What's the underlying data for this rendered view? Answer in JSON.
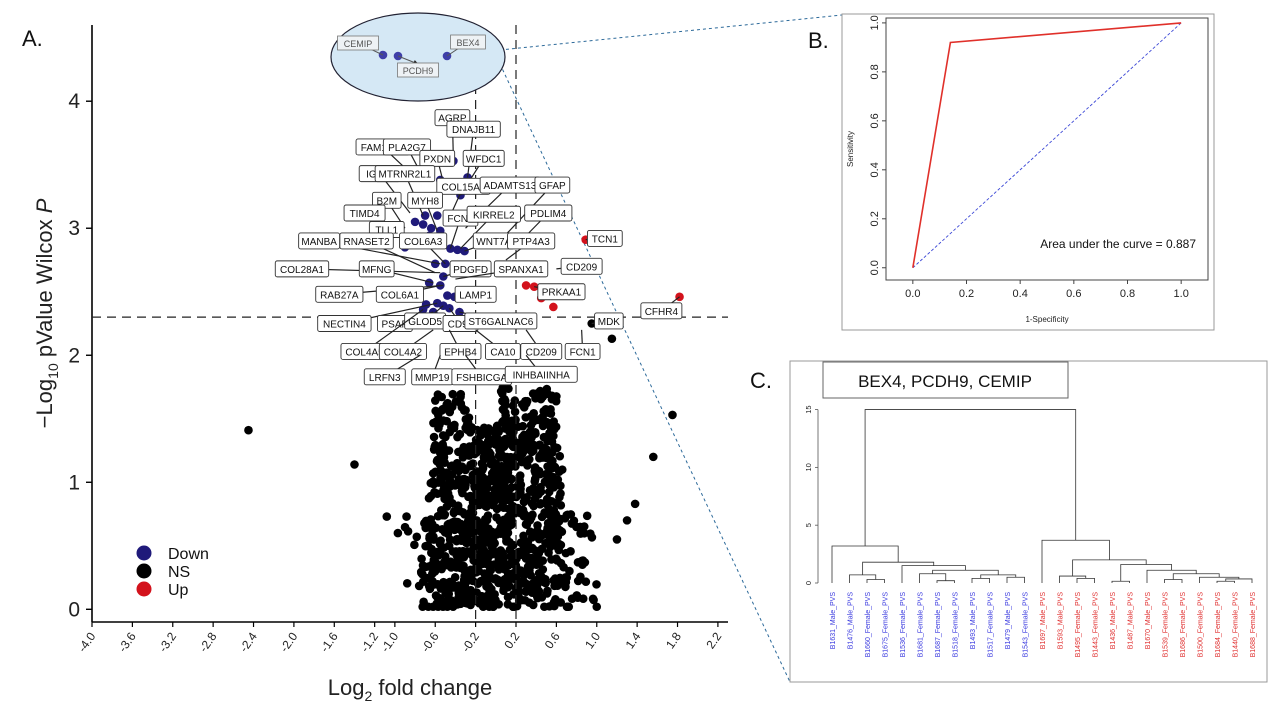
{
  "panels": {
    "a": "A.",
    "b": "B.",
    "c": "C."
  },
  "colors": {
    "down": "#1f1a7a",
    "ns": "#000000",
    "up": "#d3121c",
    "roc": "#e0302a",
    "diag": "#3b47d6",
    "ellipse": "#d5e8f5",
    "male": "#3a3adf",
    "female": "#e03030"
  },
  "chart_data": [
    {
      "type": "scatter",
      "panel": "A",
      "xlabel_parts": [
        "Log",
        "2",
        " fold change"
      ],
      "ylabel_parts": [
        "−Log",
        "10",
        " pValue Wilcox ",
        "P"
      ],
      "xlim": [
        -4.0,
        2.3
      ],
      "ylim": [
        -0.1,
        4.6
      ],
      "x_ticks": [
        "-4.0",
        "-3.6",
        "-3.2",
        "-2.8",
        "-2.4",
        "-2.0",
        "-1.6",
        "-1.2",
        "-1.0",
        "-0.6",
        "-0.2",
        "0.2",
        "0.6",
        "1.0",
        "1.4",
        "1.8",
        "2.2"
      ],
      "y_ticks": [
        "0",
        "1",
        "2",
        "3",
        "4"
      ],
      "thresholds": {
        "fc": [
          -0.2,
          0.2
        ],
        "p": 2.3
      },
      "legend": [
        "Down",
        "NS",
        "Up"
      ],
      "legend_position": "bottom-left",
      "down_points": [
        [
          -0.8,
          3.05
        ],
        [
          -0.72,
          3.03
        ],
        [
          -0.64,
          3.0
        ],
        [
          -0.55,
          2.98
        ],
        [
          -0.9,
          2.85
        ],
        [
          -0.45,
          2.84
        ],
        [
          -0.38,
          2.83
        ],
        [
          -0.31,
          2.82
        ],
        [
          -0.6,
          2.72
        ],
        [
          -0.5,
          2.72
        ],
        [
          -0.52,
          2.62
        ],
        [
          -0.66,
          2.57
        ],
        [
          -0.55,
          2.55
        ],
        [
          -0.48,
          2.47
        ],
        [
          -0.41,
          2.46
        ],
        [
          -0.58,
          2.41
        ],
        [
          -0.52,
          2.39
        ],
        [
          -0.69,
          2.4
        ],
        [
          -0.46,
          2.37
        ],
        [
          -0.36,
          2.34
        ],
        [
          -0.72,
          2.36
        ],
        [
          -0.62,
          2.34
        ],
        [
          -1.15,
          3.12
        ],
        [
          -1.25,
          3.1
        ],
        [
          -0.42,
          3.53
        ],
        [
          -0.28,
          3.4
        ],
        [
          -0.55,
          3.38
        ],
        [
          -0.5,
          3.3
        ],
        [
          -0.35,
          3.26
        ],
        [
          -0.58,
          3.1
        ],
        [
          -0.7,
          3.1
        ],
        [
          -0.45,
          3.1
        ],
        [
          -0.8,
          2.92
        ],
        [
          -0.66,
          2.94
        ]
      ],
      "up_points": [
        [
          0.3,
          2.55
        ],
        [
          0.38,
          2.54
        ],
        [
          0.45,
          2.45
        ],
        [
          0.57,
          2.38
        ],
        [
          0.89,
          2.91
        ],
        [
          1.82,
          2.46
        ]
      ],
      "ns_seed": 7,
      "ns_extra": [
        [
          -2.45,
          1.41
        ],
        [
          -1.4,
          1.14
        ],
        [
          1.75,
          1.53
        ],
        [
          1.56,
          1.2
        ],
        [
          1.38,
          0.83
        ],
        [
          1.3,
          0.7
        ],
        [
          1.2,
          0.55
        ],
        [
          -1.08,
          0.73
        ],
        [
          -0.97,
          0.6
        ],
        [
          0.95,
          2.25
        ],
        [
          1.15,
          2.13
        ]
      ],
      "labels": [
        {
          "text": "AGRP",
          "x": -0.43,
          "y": 3.87,
          "px": -0.42,
          "py": 3.53
        },
        {
          "text": "DNAJB11",
          "x": -0.22,
          "y": 3.78,
          "px": -0.28,
          "py": 3.4
        },
        {
          "text": "FAM151A",
          "x": -1.12,
          "y": 3.64,
          "px": -0.8,
          "py": 3.4
        },
        {
          "text": "PLA2G7",
          "x": -0.88,
          "y": 3.64,
          "px": -0.7,
          "py": 3.37
        },
        {
          "text": "PXDN",
          "x": -0.58,
          "y": 3.55,
          "px": -0.5,
          "py": 3.3
        },
        {
          "text": "WFDC1",
          "x": -0.12,
          "y": 3.55,
          "px": -0.35,
          "py": 3.26
        },
        {
          "text": "IGLL1",
          "x": -1.15,
          "y": 3.43,
          "px": -0.85,
          "py": 3.12
        },
        {
          "text": "MTRNR2L1",
          "x": -0.9,
          "y": 3.43,
          "px": -0.72,
          "py": 3.1
        },
        {
          "text": "COL15A1",
          "x": -0.32,
          "y": 3.33,
          "px": -0.45,
          "py": 3.1
        },
        {
          "text": "ADAMTS13",
          "x": 0.14,
          "y": 3.34,
          "px": -0.3,
          "py": 3.0
        },
        {
          "text": "GFAP",
          "x": 0.56,
          "y": 3.34,
          "px": 0.1,
          "py": 2.95
        },
        {
          "text": "B2M",
          "x": -1.08,
          "y": 3.22,
          "px": -0.9,
          "py": 3.0
        },
        {
          "text": "MYH8",
          "x": -0.7,
          "y": 3.22,
          "px": -0.58,
          "py": 2.98
        },
        {
          "text": "TIMD4",
          "x": -1.3,
          "y": 3.12,
          "px": -1.15,
          "py": 3.12
        },
        {
          "text": "FCN2",
          "x": -0.35,
          "y": 3.08,
          "px": -0.45,
          "py": 2.84
        },
        {
          "text": "KIRREL2",
          "x": -0.02,
          "y": 3.11,
          "px": -0.35,
          "py": 2.84
        },
        {
          "text": "PDLIM4",
          "x": 0.52,
          "y": 3.12,
          "px": 0.2,
          "py": 2.86
        },
        {
          "text": "TLL1",
          "x": -1.08,
          "y": 2.99,
          "px": -0.8,
          "py": 2.92
        },
        {
          "text": "COL6A3",
          "x": -0.72,
          "y": 2.9,
          "px": -0.5,
          "py": 2.72
        },
        {
          "text": "WNT7A",
          "x": -0.02,
          "y": 2.9,
          "px": -0.31,
          "py": 2.82
        },
        {
          "text": "PTP4A3",
          "x": 0.35,
          "y": 2.9,
          "px": 0.1,
          "py": 2.75
        },
        {
          "text": "TCN1",
          "x": 1.08,
          "y": 2.92,
          "px": 0.89,
          "py": 2.91
        },
        {
          "text": "MANBA",
          "x": -1.75,
          "y": 2.9,
          "px": -0.55,
          "py": 2.72
        },
        {
          "text": "RNASET2",
          "x": -1.28,
          "y": 2.9,
          "px": -0.6,
          "py": 2.65
        },
        {
          "text": "COL28A1",
          "x": -1.92,
          "y": 2.68,
          "px": -0.55,
          "py": 2.65
        },
        {
          "text": "MFNG",
          "x": -1.18,
          "y": 2.68,
          "px": -0.62,
          "py": 2.57
        },
        {
          "text": "PDGFD",
          "x": -0.25,
          "y": 2.68,
          "px": -0.52,
          "py": 2.62
        },
        {
          "text": "SPANXA1",
          "x": 0.25,
          "y": 2.68,
          "px": -0.4,
          "py": 2.6
        },
        {
          "text": "CD209",
          "x": 0.85,
          "y": 2.7,
          "px": 0.6,
          "py": 2.68
        },
        {
          "text": "RAB27A",
          "x": -1.55,
          "y": 2.48,
          "px": -0.52,
          "py": 2.55
        },
        {
          "text": "COL6A1",
          "x": -0.95,
          "y": 2.48,
          "px": -0.55,
          "py": 2.55
        },
        {
          "text": "LAMP1",
          "x": -0.2,
          "y": 2.48,
          "px": -0.41,
          "py": 2.46
        },
        {
          "text": "PRKAA1",
          "x": 0.65,
          "y": 2.5,
          "px": 0.38,
          "py": 2.54
        },
        {
          "text": "CFHR4",
          "x": 1.64,
          "y": 2.35,
          "px": 1.82,
          "py": 2.46
        },
        {
          "text": "NECTIN4",
          "x": -1.5,
          "y": 2.25,
          "px": -0.58,
          "py": 2.41
        },
        {
          "text": "PSAP",
          "x": -1.0,
          "y": 2.25,
          "px": -0.62,
          "py": 2.34
        },
        {
          "text": "GLOD5",
          "x": -0.7,
          "y": 2.27,
          "px": -0.52,
          "py": 2.39
        },
        {
          "text": "CD93",
          "x": -0.35,
          "y": 2.25,
          "px": -0.46,
          "py": 2.37
        },
        {
          "text": "ST6GALNAC6",
          "x": 0.05,
          "y": 2.27,
          "px": -0.36,
          "py": 2.34
        },
        {
          "text": "MDK",
          "x": 1.12,
          "y": 2.27,
          "px": 0.95,
          "py": 2.25
        },
        {
          "text": "COL4A5",
          "x": -1.3,
          "y": 2.03,
          "px": -0.72,
          "py": 2.36
        },
        {
          "text": "COL4A2",
          "x": -0.92,
          "y": 2.03,
          "px": -0.62,
          "py": 2.2
        },
        {
          "text": "EPHB4",
          "x": -0.35,
          "y": 2.03,
          "px": -0.46,
          "py": 2.2
        },
        {
          "text": "CA10",
          "x": 0.07,
          "y": 2.03,
          "px": -0.2,
          "py": 2.2
        },
        {
          "text": "CD209",
          "x": 0.45,
          "y": 2.03,
          "px": 0.3,
          "py": 2.2
        },
        {
          "text": "FCN1",
          "x": 0.86,
          "y": 2.03,
          "px": 0.85,
          "py": 2.2
        },
        {
          "text": "LRFN3",
          "x": -1.1,
          "y": 1.83,
          "px": -0.75,
          "py": 2.0
        },
        {
          "text": "MMP19",
          "x": -0.63,
          "y": 1.83,
          "px": -0.55,
          "py": 2.0
        },
        {
          "text": "FSHBICGA",
          "x": -0.14,
          "y": 1.83,
          "px": -0.3,
          "py": 2.0
        },
        {
          "text": "INHBAIINHA",
          "x": 0.45,
          "y": 1.85,
          "px": 0.3,
          "py": 2.0
        }
      ],
      "inset_genes": [
        "CEMIP",
        "PCDH9",
        "BEX4"
      ]
    },
    {
      "type": "line",
      "panel": "B",
      "xlabel": "1-Specificity",
      "ylabel": "Sensitivity",
      "xlim": [
        -0.1,
        1.1
      ],
      "ylim": [
        -0.05,
        1.02
      ],
      "x_ticks": [
        "0.0",
        "0.2",
        "0.4",
        "0.6",
        "0.8",
        "1.0"
      ],
      "y_ticks": [
        "0.0",
        "0.2",
        "0.4",
        "0.6",
        "0.8",
        "1.0"
      ],
      "series": [
        {
          "x": [
            0.0,
            0.14,
            1.0
          ],
          "y": [
            0.0,
            0.92,
            1.0
          ]
        }
      ],
      "annotation": "Area under the curve = 0.887"
    },
    {
      "type": "dendrogram",
      "panel": "C",
      "title": "BEX4, PCDH9, CEMIP",
      "y_ticks": [
        "0",
        "5",
        "10",
        "15"
      ],
      "ylim": [
        0,
        16
      ],
      "leaves": [
        {
          "label": "B1631_Male_PVS",
          "group": "male"
        },
        {
          "label": "B1476_Male_PVS",
          "group": "male"
        },
        {
          "label": "B1660_Female_PVS",
          "group": "male"
        },
        {
          "label": "B1675_Female_PVS",
          "group": "male"
        },
        {
          "label": "B1536_Female_PVS",
          "group": "male"
        },
        {
          "label": "B1681_Female_PVS",
          "group": "male"
        },
        {
          "label": "B1687_Female_PVS",
          "group": "male"
        },
        {
          "label": "B1518_Female_PVS",
          "group": "male"
        },
        {
          "label": "B1493_Male_PVS",
          "group": "male"
        },
        {
          "label": "B1517_Female_PVS",
          "group": "male"
        },
        {
          "label": "B1479_Male_PVS",
          "group": "male"
        },
        {
          "label": "B1543_Female_PVS",
          "group": "male"
        },
        {
          "label": "B1697_Male_PVS",
          "group": "female"
        },
        {
          "label": "B1593_Male_PVS",
          "group": "female"
        },
        {
          "label": "B1495_Female_PVS",
          "group": "female"
        },
        {
          "label": "B1443_Female_PVS",
          "group": "female"
        },
        {
          "label": "B1436_Male_PVS",
          "group": "female"
        },
        {
          "label": "B1487_Male_PVS",
          "group": "female"
        },
        {
          "label": "B1670_Male_PVS",
          "group": "female"
        },
        {
          "label": "B1539_Female_PVS",
          "group": "female"
        },
        {
          "label": "B1686_Female_PVS",
          "group": "female"
        },
        {
          "label": "B1500_Female_PVS",
          "group": "female"
        },
        {
          "label": "B1684_Female_PVS",
          "group": "female"
        },
        {
          "label": "B1440_Female_PVS",
          "group": "female"
        },
        {
          "label": "B1688_Female_PVS",
          "group": "female"
        }
      ],
      "root_height": 15.0,
      "left_cluster_height": 3.2,
      "right_cluster_height": 3.7
    }
  ]
}
